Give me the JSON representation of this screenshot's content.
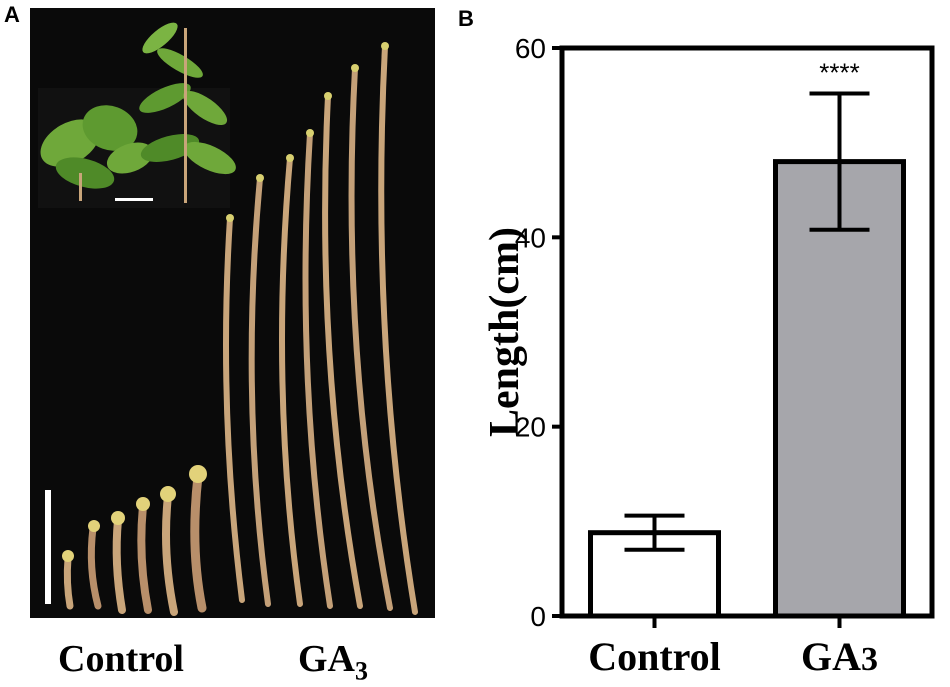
{
  "figure": {
    "panel_a_label": "A",
    "panel_b_label": "B",
    "photo_captions": {
      "control": "Control",
      "ga3_base": "GA",
      "ga3_sub": "3"
    }
  },
  "colors": {
    "photo_background": "#0a0a0a",
    "leaf_green": "#6fa83a",
    "leaf_dark": "#3f7a22",
    "shoot": "#c9a57a",
    "bud": "#e2d27a",
    "control_bar": "#ffffff",
    "ga3_bar": "#a6a6ab",
    "axis": "#000000"
  },
  "chart_data": {
    "type": "bar",
    "categories": [
      "Control",
      "GA3"
    ],
    "category_labels": [
      {
        "base": "Control",
        "sub": ""
      },
      {
        "base": "GA",
        "sub": "3"
      }
    ],
    "values": [
      8.8,
      48.0
    ],
    "error": [
      1.8,
      7.2
    ],
    "significance": [
      "",
      "****"
    ],
    "ylabel": "Length(cm)",
    "xlabel": "",
    "title": "",
    "ylim": [
      0,
      60
    ],
    "yticks": [
      0,
      20,
      40,
      60
    ],
    "grid": false,
    "legend": "none"
  }
}
